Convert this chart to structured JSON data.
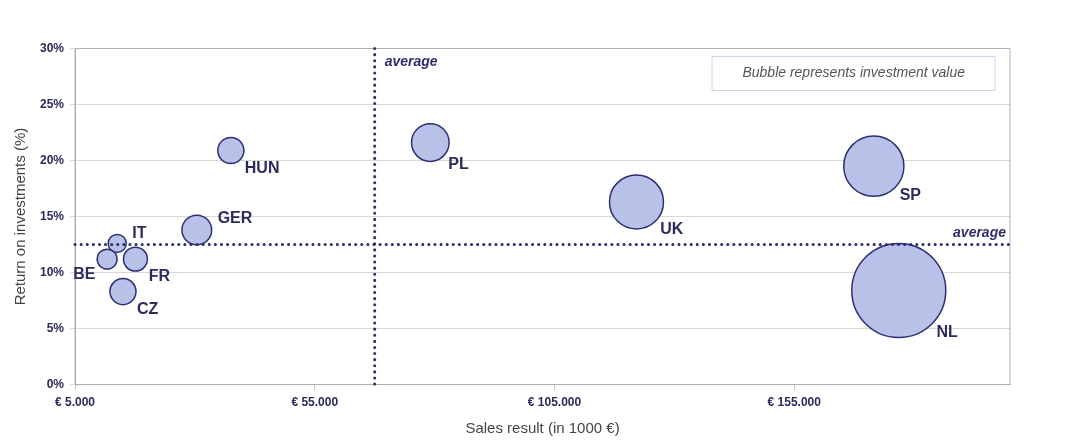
{
  "chart_data": {
    "type": "bubble",
    "xlabel": "Sales result (in 1000 €)",
    "ylabel": "Return on investments (%)",
    "annotations": [
      "Bubble represents investment value"
    ],
    "xlim": [
      5000,
      200000
    ],
    "xticks": [
      {
        "value": 5000,
        "label": "€ 5.000"
      },
      {
        "value": 55000,
        "label": "€ 55.000"
      },
      {
        "value": 105000,
        "label": "€ 105.000"
      },
      {
        "value": 155000,
        "label": "€ 155.000"
      }
    ],
    "ylim": [
      0,
      30
    ],
    "yticks": [
      {
        "value": 0,
        "label": "0%"
      },
      {
        "value": 5,
        "label": "5%"
      },
      {
        "value": 10,
        "label": "10%"
      },
      {
        "value": 15,
        "label": "15%"
      },
      {
        "value": 20,
        "label": "20%"
      },
      {
        "value": 25,
        "label": "25%"
      },
      {
        "value": 30,
        "label": "30%"
      }
    ],
    "grid": "y",
    "legend": false,
    "ref_lines": [
      {
        "axis": "x",
        "value": 67500,
        "label": "average",
        "color": "#2e2e6e",
        "line_style": "dotted"
      },
      {
        "axis": "y",
        "value": 12.5,
        "label": "average",
        "color": "#2e2e6e",
        "line_style": "dotted"
      }
    ],
    "series": [
      {
        "name": "IT",
        "color": "#b8c2e8",
        "x": [
          13800
        ],
        "values": [
          12.6
        ],
        "sizes": [
          0.037
        ]
      },
      {
        "name": "BE",
        "color": "#b8c2e8",
        "x": [
          11700
        ],
        "values": [
          11.2
        ],
        "sizes": [
          0.045
        ]
      },
      {
        "name": "FR",
        "color": "#b8c2e8",
        "x": [
          17600
        ],
        "values": [
          11.2
        ],
        "sizes": [
          0.065
        ]
      },
      {
        "name": "CZ",
        "color": "#b8c2e8",
        "x": [
          15000
        ],
        "values": [
          8.3
        ],
        "sizes": [
          0.077
        ]
      },
      {
        "name": "GER",
        "color": "#b8c2e8",
        "x": [
          30400
        ],
        "values": [
          13.8
        ],
        "sizes": [
          0.1
        ]
      },
      {
        "name": "HUN",
        "color": "#b8c2e8",
        "x": [
          37500
        ],
        "values": [
          20.9
        ],
        "sizes": [
          0.077
        ]
      },
      {
        "name": "PL",
        "color": "#b8c2e8",
        "x": [
          79100
        ],
        "values": [
          21.6
        ],
        "sizes": [
          0.16
        ]
      },
      {
        "name": "UK",
        "color": "#b8c2e8",
        "x": [
          122100
        ],
        "values": [
          16.3
        ],
        "sizes": [
          0.33
        ]
      },
      {
        "name": "SP",
        "color": "#b8c2e8",
        "x": [
          171600
        ],
        "values": [
          19.5
        ],
        "sizes": [
          0.41
        ]
      },
      {
        "name": "NL",
        "color": "#b8c2e8",
        "x": [
          176800
        ],
        "values": [
          8.4
        ],
        "sizes": [
          1
        ]
      }
    ]
  }
}
